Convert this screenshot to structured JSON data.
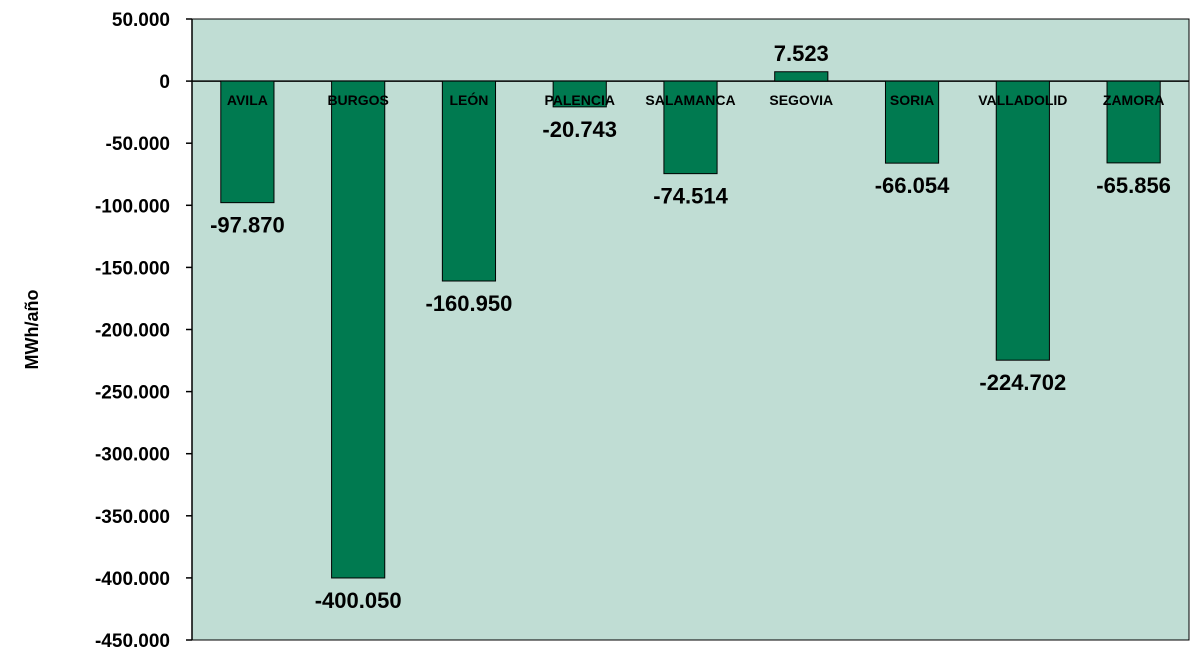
{
  "chart_data": {
    "type": "bar",
    "title": "",
    "xlabel": "",
    "ylabel": "MWh/año",
    "categories": [
      "AVILA",
      "BURGOS",
      "LEÓN",
      "PALENCIA",
      "SALAMANCA",
      "SEGOVIA",
      "SORIA",
      "VALLADOLID",
      "ZAMORA"
    ],
    "values": [
      -97870,
      -400050,
      -160950,
      -20743,
      -74514,
      7523,
      -66054,
      -224702,
      -65856
    ],
    "value_labels": [
      "-97.870",
      "-400.050",
      "-160.950",
      "-20.743",
      "-74.514",
      "7.523",
      "-66.054",
      "-224.702",
      "-65.856"
    ],
    "ylim": [
      -450000,
      50000
    ],
    "yticks": [
      50000,
      0,
      -50000,
      -100000,
      -150000,
      -200000,
      -250000,
      -300000,
      -350000,
      -400000,
      -450000
    ],
    "ytick_labels": [
      "50.000",
      "0",
      "-50.000",
      "-100.000",
      "-150.000",
      "-200.000",
      "-250.000",
      "-300.000",
      "-350.000",
      "-400.000",
      "-450.000"
    ],
    "grid": false,
    "legend": "none",
    "colors": {
      "bar": "#007a50",
      "bar_stroke": "#000000",
      "plot_background": "#c0ddd4"
    }
  }
}
